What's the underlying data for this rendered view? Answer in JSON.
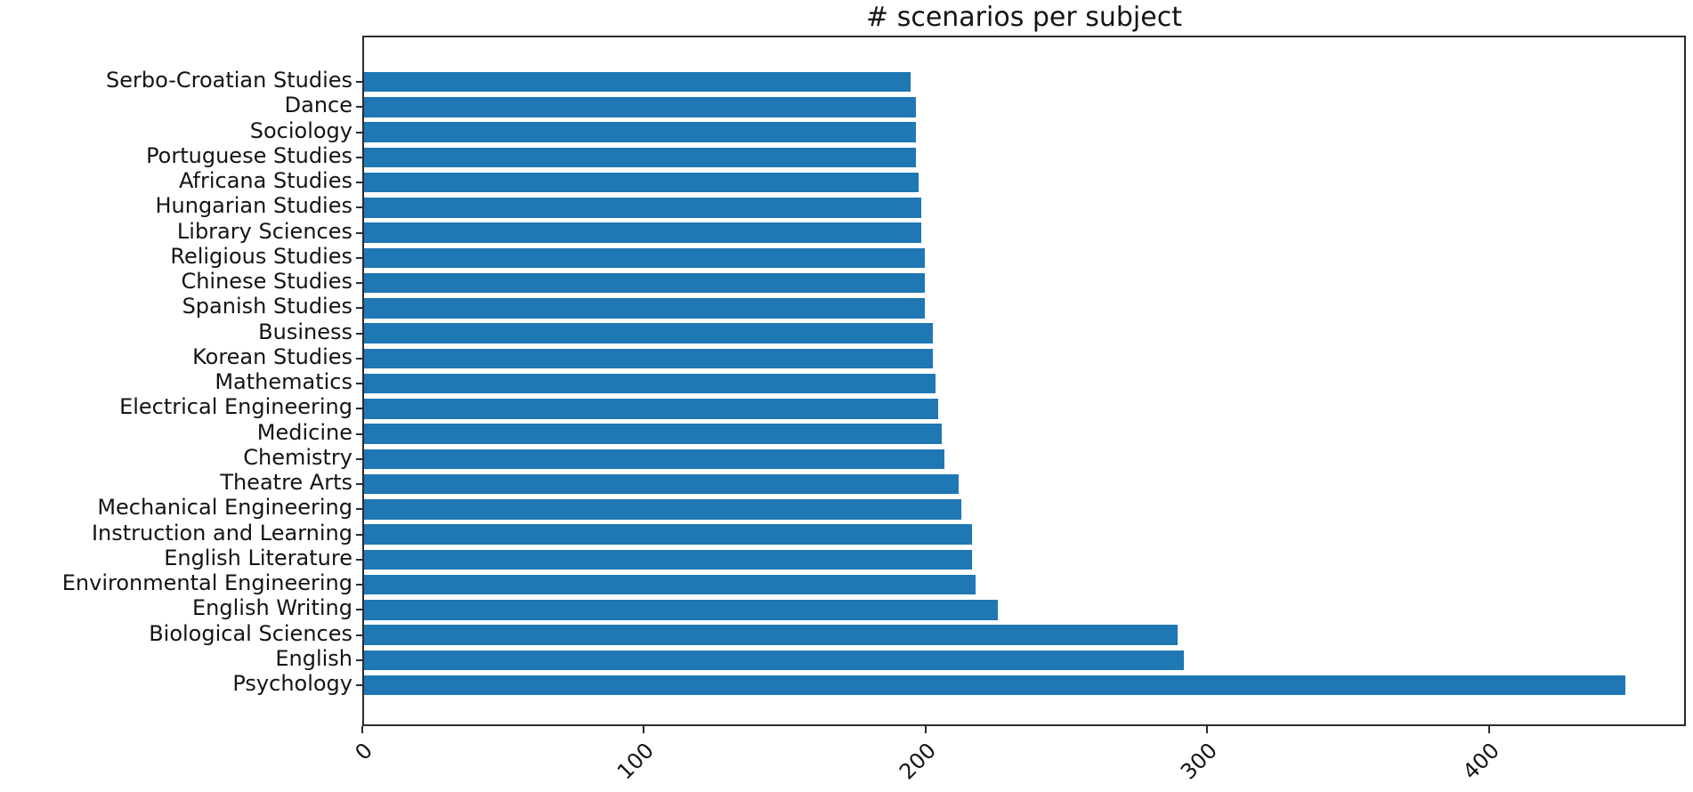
{
  "chart_data": {
    "type": "bar",
    "orientation": "horizontal",
    "title": "# scenarios per subject",
    "xlabel": "",
    "ylabel": "",
    "categories": [
      "Serbo-Croatian Studies",
      "Dance",
      "Sociology",
      "Portuguese Studies",
      "Africana Studies",
      "Hungarian Studies",
      "Library Sciences",
      "Religious Studies",
      "Chinese Studies",
      "Spanish Studies",
      "Business",
      "Korean Studies",
      "Mathematics",
      "Electrical Engineering",
      "Medicine",
      "Chemistry",
      "Theatre Arts",
      "Mechanical Engineering",
      "Instruction and Learning",
      "English Literature",
      "Environmental Engineering",
      "English Writing",
      "Biological Sciences",
      "English",
      "Psychology"
    ],
    "values": [
      194,
      196,
      196,
      196,
      197,
      198,
      198,
      199,
      199,
      199,
      202,
      202,
      203,
      204,
      205,
      206,
      211,
      212,
      216,
      216,
      217,
      225,
      289,
      291,
      448
    ],
    "x_ticks": [
      0,
      100,
      200,
      300,
      400
    ],
    "x_tick_rotation": 45,
    "xlim": [
      0,
      470
    ],
    "bar_color": "#1f77b4",
    "grid": false,
    "legend": null,
    "background": "#ffffff"
  }
}
